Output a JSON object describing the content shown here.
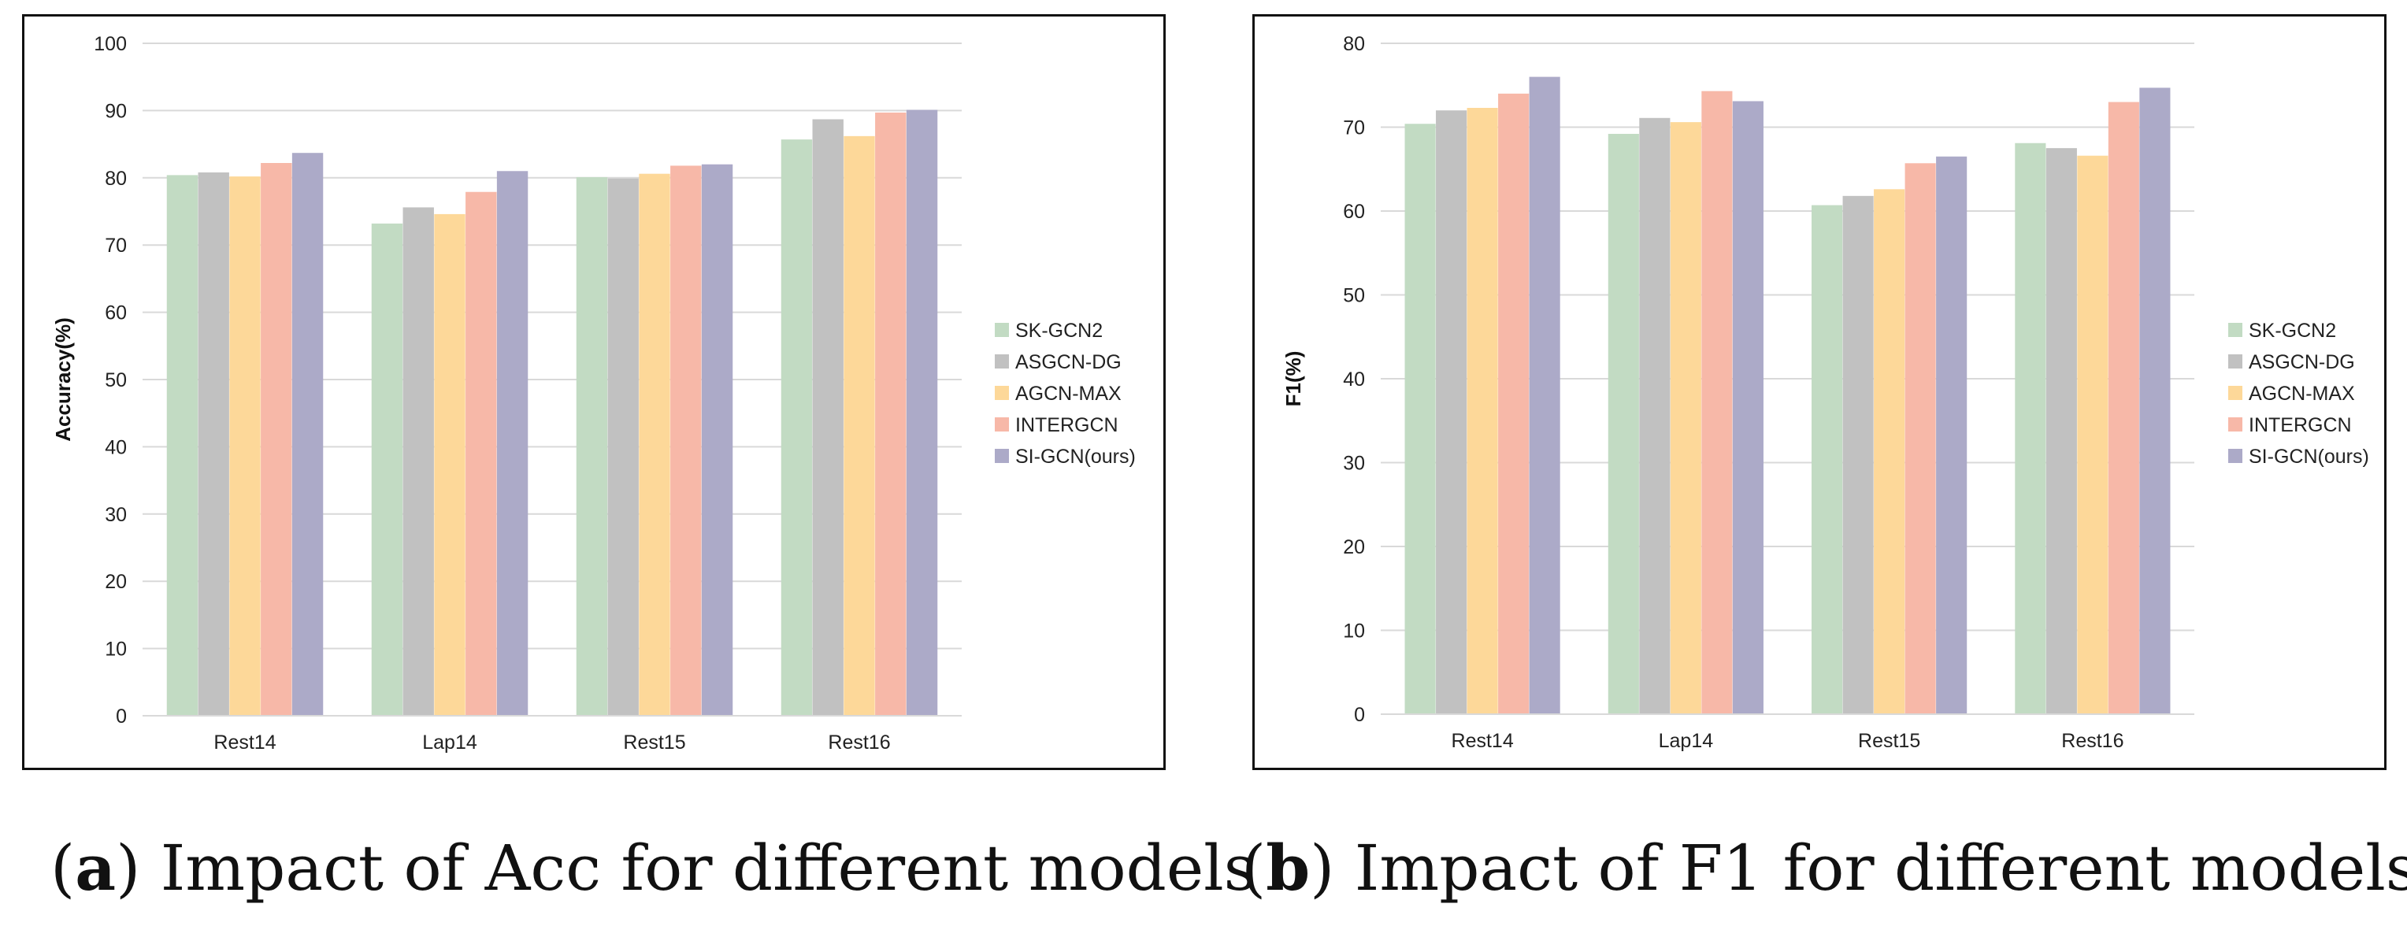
{
  "chart_data": [
    {
      "type": "bar",
      "title": "",
      "caption_label": "a",
      "caption_text": "Impact of Acc for different models",
      "xlabel": "",
      "ylabel": "Accuracy(%)",
      "ylim": [
        0,
        100
      ],
      "yticks": [
        0,
        10,
        20,
        30,
        40,
        50,
        60,
        70,
        80,
        90,
        100
      ],
      "grid": true,
      "legend_position": "right",
      "categories": [
        "Rest14",
        "Lap14",
        "Rest15",
        "Rest16"
      ],
      "series": [
        {
          "name": "SK-GCN2",
          "color": "#c2dbc3",
          "values": [
            80.4,
            73.2,
            80.1,
            85.7
          ]
        },
        {
          "name": "ASGCN-DG",
          "color": "#c1c1c1",
          "values": [
            80.8,
            75.6,
            79.9,
            88.7
          ]
        },
        {
          "name": "AGCN-MAX",
          "color": "#fdd899",
          "values": [
            80.2,
            74.6,
            80.6,
            86.2
          ]
        },
        {
          "name": "INTERGCN",
          "color": "#f7b8a8",
          "values": [
            82.2,
            77.9,
            81.8,
            89.7
          ]
        },
        {
          "name": "SI-GCN(ours)",
          "color": "#acaac8",
          "values": [
            83.7,
            81.0,
            82.0,
            90.1
          ]
        }
      ]
    },
    {
      "type": "bar",
      "title": "",
      "caption_label": "b",
      "caption_text": "Impact of F1 for different models",
      "xlabel": "",
      "ylabel": "F1(%)",
      "ylim": [
        0,
        80
      ],
      "yticks": [
        0,
        10,
        20,
        30,
        40,
        50,
        60,
        70,
        80
      ],
      "grid": true,
      "legend_position": "right",
      "categories": [
        "Rest14",
        "Lap14",
        "Rest15",
        "Rest16"
      ],
      "series": [
        {
          "name": "SK-GCN2",
          "color": "#c2dbc3",
          "values": [
            70.4,
            69.2,
            60.7,
            68.1
          ]
        },
        {
          "name": "ASGCN-DG",
          "color": "#c1c1c1",
          "values": [
            72.0,
            71.1,
            61.8,
            67.5
          ]
        },
        {
          "name": "AGCN-MAX",
          "color": "#fdd899",
          "values": [
            72.3,
            70.6,
            62.6,
            66.6
          ]
        },
        {
          "name": "INTERGCN",
          "color": "#f7b8a8",
          "values": [
            74.0,
            74.3,
            65.7,
            73.0
          ]
        },
        {
          "name": "SI-GCN(ours)",
          "color": "#acaac8",
          "values": [
            76.0,
            73.1,
            66.5,
            74.7
          ]
        }
      ]
    }
  ]
}
